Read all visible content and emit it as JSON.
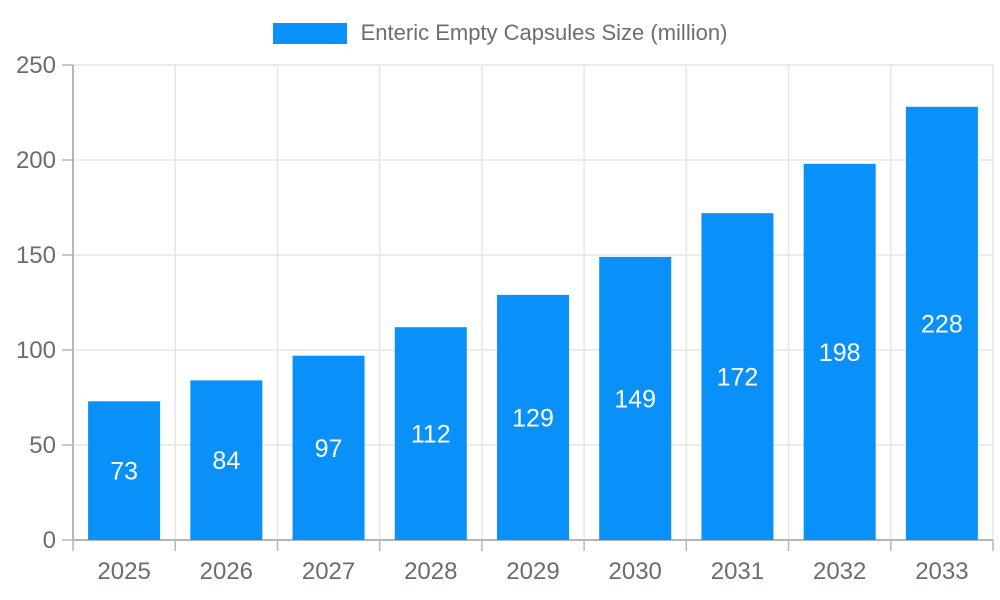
{
  "legend": {
    "label": "Enteric Empty Capsules Size (million)"
  },
  "colors": {
    "bar": "#0990f9",
    "grid": "#e5e6e7",
    "axis": "#b4b7b9",
    "tick_label": "#696d71",
    "value_label": "#ffffff",
    "legend_text": "#6b6e71",
    "background": "#ffffff"
  },
  "chart_data": {
    "type": "bar",
    "title": "Enteric Empty Capsules Size (million)",
    "categories": [
      "2025",
      "2026",
      "2027",
      "2028",
      "2029",
      "2030",
      "2031",
      "2032",
      "2033"
    ],
    "values": [
      73,
      84,
      97,
      112,
      129,
      149,
      172,
      198,
      228
    ],
    "xlabel": "",
    "ylabel": "",
    "ylim": [
      0,
      250
    ],
    "y_ticks": [
      0,
      50,
      100,
      150,
      200,
      250
    ],
    "grid": true,
    "legend_position": "top",
    "value_labels": "inside-center",
    "series": [
      {
        "name": "Enteric Empty Capsules Size (million)",
        "values": [
          73,
          84,
          97,
          112,
          129,
          149,
          172,
          198,
          228
        ]
      }
    ]
  }
}
